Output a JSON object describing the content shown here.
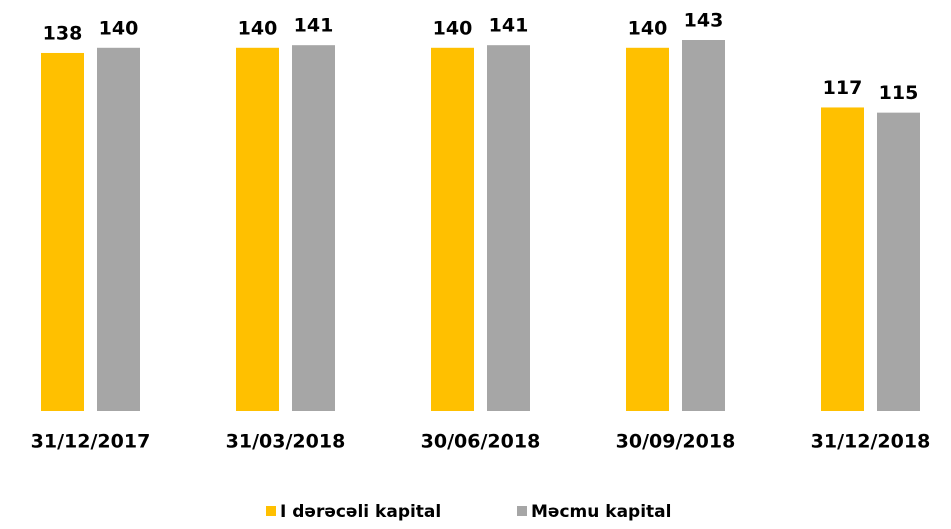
{
  "chart_data": {
    "type": "bar",
    "categories": [
      "31/12/2017",
      "31/03/2018",
      "30/06/2018",
      "30/09/2018",
      "31/12/2018"
    ],
    "series": [
      {
        "name": "I dərəcəli kapital",
        "color": "#FFC000",
        "values": [
          138,
          140,
          140,
          140,
          117
        ]
      },
      {
        "name": "Məcmu kapital",
        "color": "#A6A6A6",
        "values": [
          140,
          141,
          141,
          143,
          115
        ]
      }
    ]
  }
}
